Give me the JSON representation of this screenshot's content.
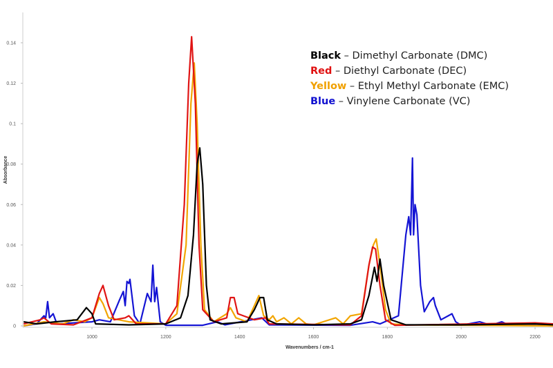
{
  "chart_data": {
    "type": "line",
    "title": "",
    "xlabel": "Wavenumbers / cm-1",
    "ylabel": "Absorbance",
    "xlim": [
      813,
      2250
    ],
    "ylim": [
      0,
      0.155
    ],
    "xticks": [
      1000,
      1200,
      1400,
      1600,
      1800,
      2000,
      2200
    ],
    "yticks": [
      0,
      0.02,
      0.04,
      0.06,
      0.08,
      0.1,
      0.12,
      0.14
    ],
    "xtick_labels": [
      "1000",
      "1200",
      "1400",
      "1600",
      "1800",
      "2000",
      "2200"
    ],
    "ytick_labels": [
      "0",
      "0.02",
      "0.04",
      "0.06",
      "0.08",
      "0.1",
      "0.12",
      "0.14"
    ],
    "grid": false,
    "legend_placement": "top-right",
    "legend": [
      {
        "key": "Black",
        "text": " – Dimethyl Carbonate (DMC)",
        "color": "#000000"
      },
      {
        "key": "Red",
        "text": " – Diethyl Carbonate (DEC)",
        "color": "#e01010"
      },
      {
        "key": "Yellow",
        "text": " – Ethyl Methyl Carbonate (EMC)",
        "color": "#f0a000"
      },
      {
        "key": "Blue",
        "text": " – Vinylene Carbonate (VC)",
        "color": "#1010d0"
      }
    ],
    "series": [
      {
        "name": "Blue – Vinylene Carbonate (VC)",
        "color": "#1414d4",
        "points": [
          [
            815,
            0
          ],
          [
            850,
            0.001
          ],
          [
            870,
            0.005
          ],
          [
            875,
            0.004
          ],
          [
            880,
            0.012
          ],
          [
            885,
            0.004
          ],
          [
            895,
            0.006
          ],
          [
            905,
            0.001
          ],
          [
            1000,
            0.002
          ],
          [
            1020,
            0.003
          ],
          [
            1050,
            0.002
          ],
          [
            1075,
            0.013
          ],
          [
            1085,
            0.017
          ],
          [
            1090,
            0.01
          ],
          [
            1095,
            0.022
          ],
          [
            1100,
            0.021
          ],
          [
            1103,
            0.023
          ],
          [
            1115,
            0.005
          ],
          [
            1130,
            0.001
          ],
          [
            1150,
            0.016
          ],
          [
            1160,
            0.012
          ],
          [
            1165,
            0.03
          ],
          [
            1170,
            0.012
          ],
          [
            1175,
            0.019
          ],
          [
            1185,
            0.002
          ],
          [
            1200,
            0.0003
          ],
          [
            1300,
            0.0003
          ],
          [
            1340,
            0.002
          ],
          [
            1360,
            0.0005
          ],
          [
            1460,
            0.004
          ],
          [
            1480,
            0.0005
          ],
          [
            1700,
            0.0003
          ],
          [
            1760,
            0.002
          ],
          [
            1780,
            0.001
          ],
          [
            1830,
            0.005
          ],
          [
            1850,
            0.045
          ],
          [
            1858,
            0.054
          ],
          [
            1863,
            0.045
          ],
          [
            1868,
            0.083
          ],
          [
            1871,
            0.045
          ],
          [
            1875,
            0.06
          ],
          [
            1880,
            0.055
          ],
          [
            1890,
            0.02
          ],
          [
            1900,
            0.007
          ],
          [
            1915,
            0.012
          ],
          [
            1925,
            0.014
          ],
          [
            1930,
            0.01
          ],
          [
            1945,
            0.003
          ],
          [
            1965,
            0.005
          ],
          [
            1975,
            0.006
          ],
          [
            1985,
            0.002
          ],
          [
            2000,
            0.0003
          ],
          [
            2050,
            0.002
          ],
          [
            2080,
            0.0003
          ],
          [
            2110,
            0.002
          ],
          [
            2130,
            0.0003
          ],
          [
            2250,
            0
          ]
        ]
      },
      {
        "name": "Yellow – Ethyl Methyl Carbonate (EMC)",
        "color": "#f2a500",
        "points": [
          [
            815,
            0
          ],
          [
            870,
            0.002
          ],
          [
            920,
            0.001
          ],
          [
            950,
            0.003
          ],
          [
            980,
            0.002
          ],
          [
            1000,
            0.004
          ],
          [
            1020,
            0.014
          ],
          [
            1030,
            0.011
          ],
          [
            1045,
            0.004
          ],
          [
            1100,
            0.002
          ],
          [
            1200,
            0.001
          ],
          [
            1230,
            0.006
          ],
          [
            1255,
            0.04
          ],
          [
            1268,
            0.11
          ],
          [
            1277,
            0.13
          ],
          [
            1285,
            0.1
          ],
          [
            1295,
            0.04
          ],
          [
            1305,
            0.008
          ],
          [
            1330,
            0.002
          ],
          [
            1365,
            0.006
          ],
          [
            1375,
            0.009
          ],
          [
            1390,
            0.004
          ],
          [
            1420,
            0.002
          ],
          [
            1440,
            0.01
          ],
          [
            1452,
            0.015
          ],
          [
            1465,
            0.005
          ],
          [
            1480,
            0.003
          ],
          [
            1490,
            0.005
          ],
          [
            1500,
            0.002
          ],
          [
            1520,
            0.004
          ],
          [
            1540,
            0.001
          ],
          [
            1560,
            0.004
          ],
          [
            1580,
            0.001
          ],
          [
            1600,
            0.0005
          ],
          [
            1660,
            0.004
          ],
          [
            1680,
            0.001
          ],
          [
            1700,
            0.005
          ],
          [
            1730,
            0.006
          ],
          [
            1750,
            0.03
          ],
          [
            1762,
            0.04
          ],
          [
            1770,
            0.043
          ],
          [
            1780,
            0.03
          ],
          [
            1795,
            0.008
          ],
          [
            1810,
            0.001
          ],
          [
            1850,
            0.0005
          ],
          [
            2250,
            0
          ]
        ]
      },
      {
        "name": "Red – Diethyl Carbonate (DEC)",
        "color": "#e01414",
        "points": [
          [
            815,
            0.001
          ],
          [
            860,
            0.003
          ],
          [
            870,
            0.004
          ],
          [
            890,
            0.001
          ],
          [
            950,
            0.0005
          ],
          [
            1000,
            0.004
          ],
          [
            1020,
            0.016
          ],
          [
            1030,
            0.02
          ],
          [
            1045,
            0.01
          ],
          [
            1060,
            0.003
          ],
          [
            1090,
            0.004
          ],
          [
            1100,
            0.005
          ],
          [
            1120,
            0.001
          ],
          [
            1200,
            0.001
          ],
          [
            1230,
            0.01
          ],
          [
            1250,
            0.06
          ],
          [
            1262,
            0.12
          ],
          [
            1270,
            0.143
          ],
          [
            1280,
            0.11
          ],
          [
            1290,
            0.04
          ],
          [
            1300,
            0.008
          ],
          [
            1310,
            0.006
          ],
          [
            1330,
            0.002
          ],
          [
            1365,
            0.004
          ],
          [
            1375,
            0.014
          ],
          [
            1385,
            0.014
          ],
          [
            1395,
            0.006
          ],
          [
            1410,
            0.005
          ],
          [
            1440,
            0.003
          ],
          [
            1470,
            0.004
          ],
          [
            1480,
            0.001
          ],
          [
            1700,
            0.0005
          ],
          [
            1730,
            0.005
          ],
          [
            1750,
            0.03
          ],
          [
            1760,
            0.039
          ],
          [
            1768,
            0.038
          ],
          [
            1780,
            0.02
          ],
          [
            1795,
            0.003
          ],
          [
            1820,
            0.0003
          ],
          [
            2200,
            0.0015
          ],
          [
            2250,
            0.001
          ]
        ]
      },
      {
        "name": "Black – Dimethyl Carbonate (DMC)",
        "color": "#000000",
        "points": [
          [
            815,
            0.002
          ],
          [
            850,
            0.001
          ],
          [
            900,
            0.002
          ],
          [
            930,
            0.0025
          ],
          [
            960,
            0.003
          ],
          [
            985,
            0.009
          ],
          [
            1000,
            0.006
          ],
          [
            1010,
            0.001
          ],
          [
            1100,
            0.0005
          ],
          [
            1200,
            0.001
          ],
          [
            1240,
            0.004
          ],
          [
            1260,
            0.015
          ],
          [
            1275,
            0.045
          ],
          [
            1285,
            0.08
          ],
          [
            1292,
            0.088
          ],
          [
            1300,
            0.07
          ],
          [
            1310,
            0.02
          ],
          [
            1320,
            0.003
          ],
          [
            1350,
            0.001
          ],
          [
            1420,
            0.002
          ],
          [
            1440,
            0.008
          ],
          [
            1455,
            0.014
          ],
          [
            1465,
            0.014
          ],
          [
            1475,
            0.003
          ],
          [
            1500,
            0.001
          ],
          [
            1600,
            0.0005
          ],
          [
            1700,
            0.001
          ],
          [
            1730,
            0.003
          ],
          [
            1750,
            0.015
          ],
          [
            1765,
            0.029
          ],
          [
            1772,
            0.022
          ],
          [
            1780,
            0.033
          ],
          [
            1790,
            0.02
          ],
          [
            1810,
            0.003
          ],
          [
            1850,
            0.0005
          ],
          [
            2000,
            0.0005
          ],
          [
            2200,
            0.001
          ],
          [
            2250,
            0.0005
          ]
        ]
      }
    ]
  }
}
